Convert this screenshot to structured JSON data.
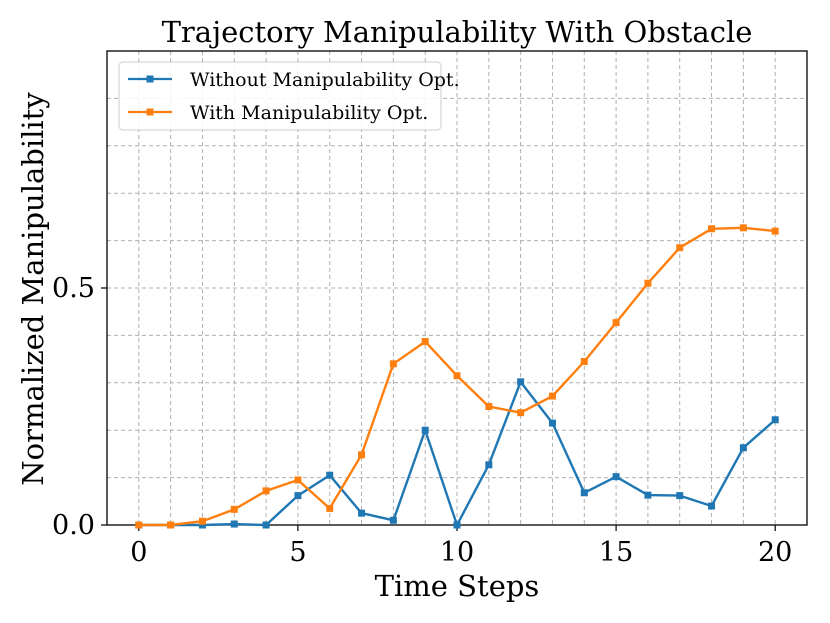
{
  "chart_data": {
    "type": "line",
    "title": "Trajectory Manipulability With Obstacle",
    "xlabel": "Time Steps",
    "ylabel": "Normalized Manipulability",
    "xlim": [
      -1,
      21
    ],
    "ylim": [
      0,
      1.0
    ],
    "xticks": [
      0,
      5,
      10,
      15,
      20
    ],
    "yticks": [
      0.0,
      0.5
    ],
    "xtick_labels": [
      "0",
      "5",
      "10",
      "15",
      "20"
    ],
    "ytick_labels": [
      "0.0",
      "0.5"
    ],
    "grid": true,
    "legend_position": "top-left",
    "x": [
      0,
      1,
      2,
      3,
      4,
      5,
      6,
      7,
      8,
      9,
      10,
      11,
      12,
      13,
      14,
      15,
      16,
      17,
      18,
      19,
      20
    ],
    "series": [
      {
        "name": "Without Manipulability Opt.",
        "color": "#1f77b4",
        "marker": "square",
        "values": [
          0.0,
          0.0,
          0.0,
          0.002,
          0.0,
          0.062,
          0.105,
          0.025,
          0.01,
          0.2,
          0.0,
          0.127,
          0.302,
          0.215,
          0.068,
          0.102,
          0.063,
          0.062,
          0.04,
          0.163,
          0.222
        ]
      },
      {
        "name": "With Manipulability Opt.",
        "color": "#ff7f0e",
        "marker": "square",
        "values": [
          0.0,
          0.0,
          0.008,
          0.033,
          0.072,
          0.095,
          0.035,
          0.148,
          0.34,
          0.387,
          0.315,
          0.25,
          0.237,
          0.272,
          0.345,
          0.427,
          0.51,
          0.585,
          0.625,
          0.627,
          0.62
        ]
      }
    ]
  }
}
